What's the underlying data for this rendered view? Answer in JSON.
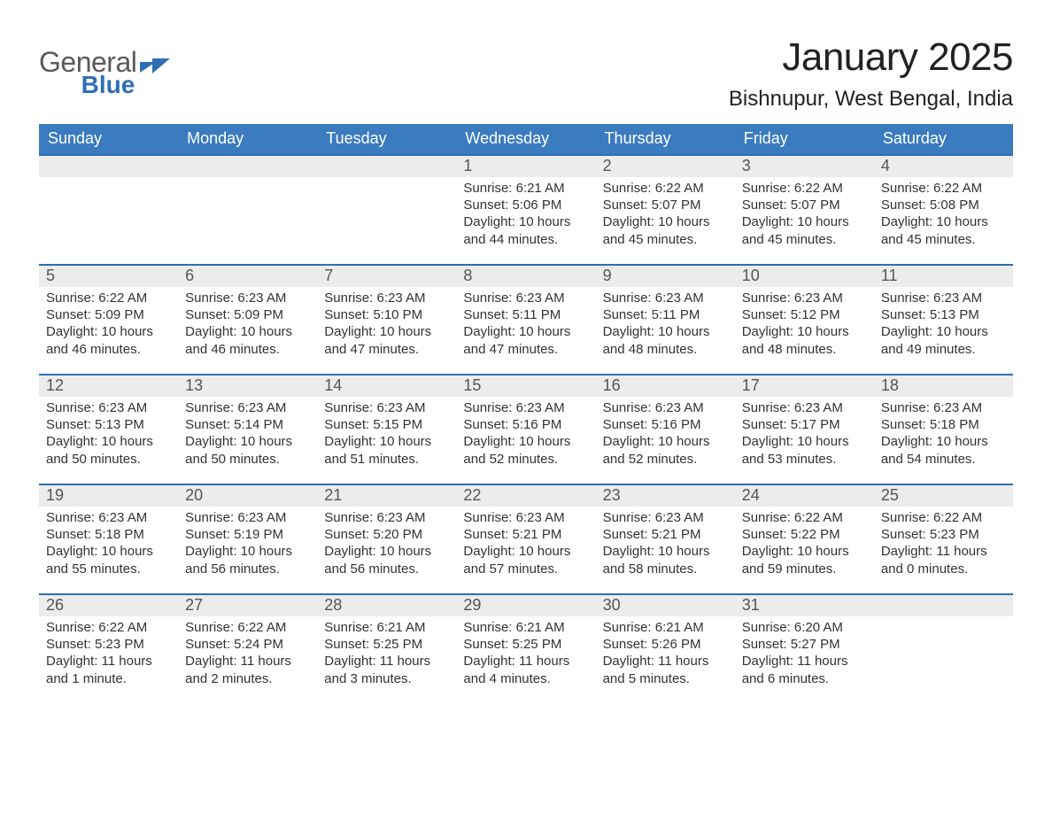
{
  "logo": {
    "word1": "General",
    "word2": "Blue"
  },
  "title": "January 2025",
  "location": "Bishnupur, West Bengal, India",
  "colors": {
    "header_blue": "#3b7bbf",
    "week_border_blue": "#2e6eb5",
    "daynum_bg": "#ececec",
    "logo_gray": "#5a5a5a",
    "logo_blue": "#2e6eb5",
    "background": "#ffffff",
    "text": "#333333"
  },
  "weekdays": [
    "Sunday",
    "Monday",
    "Tuesday",
    "Wednesday",
    "Thursday",
    "Friday",
    "Saturday"
  ],
  "weeks": [
    [
      null,
      null,
      null,
      {
        "n": "1",
        "sunrise": "Sunrise: 6:21 AM",
        "sunset": "Sunset: 5:06 PM",
        "daylight": "Daylight: 10 hours and 44 minutes."
      },
      {
        "n": "2",
        "sunrise": "Sunrise: 6:22 AM",
        "sunset": "Sunset: 5:07 PM",
        "daylight": "Daylight: 10 hours and 45 minutes."
      },
      {
        "n": "3",
        "sunrise": "Sunrise: 6:22 AM",
        "sunset": "Sunset: 5:07 PM",
        "daylight": "Daylight: 10 hours and 45 minutes."
      },
      {
        "n": "4",
        "sunrise": "Sunrise: 6:22 AM",
        "sunset": "Sunset: 5:08 PM",
        "daylight": "Daylight: 10 hours and 45 minutes."
      }
    ],
    [
      {
        "n": "5",
        "sunrise": "Sunrise: 6:22 AM",
        "sunset": "Sunset: 5:09 PM",
        "daylight": "Daylight: 10 hours and 46 minutes."
      },
      {
        "n": "6",
        "sunrise": "Sunrise: 6:23 AM",
        "sunset": "Sunset: 5:09 PM",
        "daylight": "Daylight: 10 hours and 46 minutes."
      },
      {
        "n": "7",
        "sunrise": "Sunrise: 6:23 AM",
        "sunset": "Sunset: 5:10 PM",
        "daylight": "Daylight: 10 hours and 47 minutes."
      },
      {
        "n": "8",
        "sunrise": "Sunrise: 6:23 AM",
        "sunset": "Sunset: 5:11 PM",
        "daylight": "Daylight: 10 hours and 47 minutes."
      },
      {
        "n": "9",
        "sunrise": "Sunrise: 6:23 AM",
        "sunset": "Sunset: 5:11 PM",
        "daylight": "Daylight: 10 hours and 48 minutes."
      },
      {
        "n": "10",
        "sunrise": "Sunrise: 6:23 AM",
        "sunset": "Sunset: 5:12 PM",
        "daylight": "Daylight: 10 hours and 48 minutes."
      },
      {
        "n": "11",
        "sunrise": "Sunrise: 6:23 AM",
        "sunset": "Sunset: 5:13 PM",
        "daylight": "Daylight: 10 hours and 49 minutes."
      }
    ],
    [
      {
        "n": "12",
        "sunrise": "Sunrise: 6:23 AM",
        "sunset": "Sunset: 5:13 PM",
        "daylight": "Daylight: 10 hours and 50 minutes."
      },
      {
        "n": "13",
        "sunrise": "Sunrise: 6:23 AM",
        "sunset": "Sunset: 5:14 PM",
        "daylight": "Daylight: 10 hours and 50 minutes."
      },
      {
        "n": "14",
        "sunrise": "Sunrise: 6:23 AM",
        "sunset": "Sunset: 5:15 PM",
        "daylight": "Daylight: 10 hours and 51 minutes."
      },
      {
        "n": "15",
        "sunrise": "Sunrise: 6:23 AM",
        "sunset": "Sunset: 5:16 PM",
        "daylight": "Daylight: 10 hours and 52 minutes."
      },
      {
        "n": "16",
        "sunrise": "Sunrise: 6:23 AM",
        "sunset": "Sunset: 5:16 PM",
        "daylight": "Daylight: 10 hours and 52 minutes."
      },
      {
        "n": "17",
        "sunrise": "Sunrise: 6:23 AM",
        "sunset": "Sunset: 5:17 PM",
        "daylight": "Daylight: 10 hours and 53 minutes."
      },
      {
        "n": "18",
        "sunrise": "Sunrise: 6:23 AM",
        "sunset": "Sunset: 5:18 PM",
        "daylight": "Daylight: 10 hours and 54 minutes."
      }
    ],
    [
      {
        "n": "19",
        "sunrise": "Sunrise: 6:23 AM",
        "sunset": "Sunset: 5:18 PM",
        "daylight": "Daylight: 10 hours and 55 minutes."
      },
      {
        "n": "20",
        "sunrise": "Sunrise: 6:23 AM",
        "sunset": "Sunset: 5:19 PM",
        "daylight": "Daylight: 10 hours and 56 minutes."
      },
      {
        "n": "21",
        "sunrise": "Sunrise: 6:23 AM",
        "sunset": "Sunset: 5:20 PM",
        "daylight": "Daylight: 10 hours and 56 minutes."
      },
      {
        "n": "22",
        "sunrise": "Sunrise: 6:23 AM",
        "sunset": "Sunset: 5:21 PM",
        "daylight": "Daylight: 10 hours and 57 minutes."
      },
      {
        "n": "23",
        "sunrise": "Sunrise: 6:23 AM",
        "sunset": "Sunset: 5:21 PM",
        "daylight": "Daylight: 10 hours and 58 minutes."
      },
      {
        "n": "24",
        "sunrise": "Sunrise: 6:22 AM",
        "sunset": "Sunset: 5:22 PM",
        "daylight": "Daylight: 10 hours and 59 minutes."
      },
      {
        "n": "25",
        "sunrise": "Sunrise: 6:22 AM",
        "sunset": "Sunset: 5:23 PM",
        "daylight": "Daylight: 11 hours and 0 minutes."
      }
    ],
    [
      {
        "n": "26",
        "sunrise": "Sunrise: 6:22 AM",
        "sunset": "Sunset: 5:23 PM",
        "daylight": "Daylight: 11 hours and 1 minute."
      },
      {
        "n": "27",
        "sunrise": "Sunrise: 6:22 AM",
        "sunset": "Sunset: 5:24 PM",
        "daylight": "Daylight: 11 hours and 2 minutes."
      },
      {
        "n": "28",
        "sunrise": "Sunrise: 6:21 AM",
        "sunset": "Sunset: 5:25 PM",
        "daylight": "Daylight: 11 hours and 3 minutes."
      },
      {
        "n": "29",
        "sunrise": "Sunrise: 6:21 AM",
        "sunset": "Sunset: 5:25 PM",
        "daylight": "Daylight: 11 hours and 4 minutes."
      },
      {
        "n": "30",
        "sunrise": "Sunrise: 6:21 AM",
        "sunset": "Sunset: 5:26 PM",
        "daylight": "Daylight: 11 hours and 5 minutes."
      },
      {
        "n": "31",
        "sunrise": "Sunrise: 6:20 AM",
        "sunset": "Sunset: 5:27 PM",
        "daylight": "Daylight: 11 hours and 6 minutes."
      },
      null
    ]
  ]
}
